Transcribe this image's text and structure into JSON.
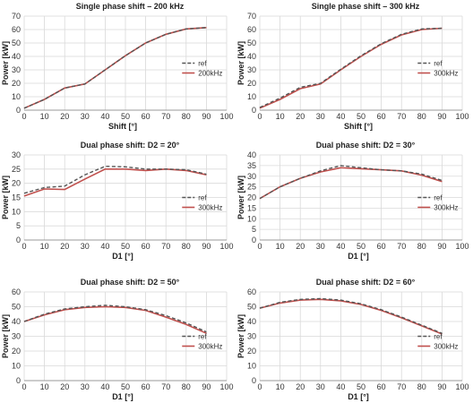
{
  "chart_data": [
    {
      "type": "line",
      "title": "Single phase shift – 200 kHz",
      "xlabel": "Shift [°]",
      "ylabel": "Power [kW]",
      "xlim": [
        0,
        100
      ],
      "ylim": [
        0,
        70
      ],
      "xticks": [
        "0",
        "10",
        "20",
        "30",
        "40",
        "50",
        "60",
        "70",
        "80",
        "90",
        "100"
      ],
      "yticks": [
        "0",
        "10",
        "20",
        "30",
        "40",
        "50",
        "60",
        "70"
      ],
      "grid": true,
      "legend_position": "right",
      "series": [
        {
          "name": "ref",
          "style": "dashed",
          "color": "#555555",
          "x": [
            0,
            10,
            20,
            30,
            40,
            50,
            60,
            70,
            80,
            90
          ],
          "y": [
            1.5,
            8,
            16.5,
            19.5,
            30,
            40.5,
            50,
            56.5,
            60.5,
            61.5
          ]
        },
        {
          "name": "200kHz",
          "style": "solid",
          "color": "#c0504d",
          "x": [
            0,
            10,
            20,
            30,
            40,
            50,
            60,
            70,
            80,
            90
          ],
          "y": [
            1.5,
            8,
            16.5,
            19.5,
            30,
            40.5,
            50,
            56.5,
            60.5,
            61.5
          ]
        }
      ]
    },
    {
      "type": "line",
      "title": "Single phase shift – 300 kHz",
      "xlabel": "Shift [°]",
      "ylabel": "Power [kW]",
      "xlim": [
        0,
        100
      ],
      "ylim": [
        0,
        70
      ],
      "xticks": [
        "0",
        "10",
        "20",
        "30",
        "40",
        "50",
        "60",
        "70",
        "80",
        "90",
        "100"
      ],
      "yticks": [
        "0",
        "10",
        "20",
        "30",
        "40",
        "50",
        "60",
        "70"
      ],
      "grid": true,
      "legend_position": "right",
      "series": [
        {
          "name": "ref",
          "style": "dashed",
          "color": "#555555",
          "x": [
            0,
            10,
            20,
            30,
            40,
            50,
            60,
            70,
            80,
            90
          ],
          "y": [
            2,
            9,
            17,
            20,
            30.5,
            40.5,
            49.5,
            56.5,
            60.5,
            61
          ]
        },
        {
          "name": "300kHz",
          "style": "solid",
          "color": "#c0504d",
          "x": [
            0,
            10,
            20,
            30,
            40,
            50,
            60,
            70,
            80,
            90
          ],
          "y": [
            1.5,
            8,
            16,
            19.5,
            30,
            40,
            49,
            56,
            60,
            61
          ]
        }
      ]
    },
    {
      "type": "line",
      "title": "Dual phase shift: D2 = 20°",
      "xlabel": "D1 [°]",
      "ylabel": "Power [kW]",
      "xlim": [
        0,
        100
      ],
      "ylim": [
        0,
        30
      ],
      "xticks": [
        "0",
        "10",
        "20",
        "30",
        "40",
        "50",
        "60",
        "70",
        "80",
        "90",
        "100"
      ],
      "yticks": [
        "0",
        "5",
        "10",
        "15",
        "20",
        "25",
        "30"
      ],
      "grid": true,
      "legend_position": "right",
      "series": [
        {
          "name": "ref",
          "style": "dashed",
          "color": "#555555",
          "x": [
            0,
            10,
            20,
            30,
            40,
            50,
            60,
            70,
            80,
            90
          ],
          "y": [
            16.5,
            18.5,
            19,
            23,
            26,
            25.8,
            25,
            25,
            24.8,
            23.2
          ]
        },
        {
          "name": "300kHz",
          "style": "solid",
          "color": "#c0504d",
          "x": [
            0,
            10,
            20,
            30,
            40,
            50,
            60,
            70,
            80,
            90
          ],
          "y": [
            15.5,
            18,
            17.8,
            21.5,
            25,
            25,
            24.5,
            25,
            24.5,
            23
          ]
        }
      ]
    },
    {
      "type": "line",
      "title": "Dual phase shift: D2 = 30°",
      "xlabel": "D1 [°]",
      "ylabel": "Power [kW]",
      "xlim": [
        0,
        100
      ],
      "ylim": [
        0,
        40
      ],
      "xticks": [
        "0",
        "10",
        "20",
        "30",
        "40",
        "50",
        "60",
        "70",
        "80",
        "90",
        "100"
      ],
      "yticks": [
        "0",
        "5",
        "10",
        "15",
        "20",
        "25",
        "30",
        "35",
        "40"
      ],
      "grid": true,
      "legend_position": "right",
      "series": [
        {
          "name": "ref",
          "style": "dashed",
          "color": "#555555",
          "x": [
            0,
            10,
            20,
            30,
            40,
            50,
            60,
            70,
            80,
            90
          ],
          "y": [
            19.5,
            25,
            29,
            32.5,
            35,
            34,
            33,
            32.5,
            31,
            28
          ]
        },
        {
          "name": "300kHz",
          "style": "solid",
          "color": "#c0504d",
          "x": [
            0,
            10,
            20,
            30,
            40,
            50,
            60,
            70,
            80,
            90
          ],
          "y": [
            19.5,
            25,
            29,
            32,
            34,
            33.5,
            33,
            32.5,
            30.5,
            27.5
          ]
        }
      ]
    },
    {
      "type": "line",
      "title": "Dual phase shift: D2 = 50°",
      "xlabel": "D1 [°]",
      "ylabel": "Power [kW]",
      "xlim": [
        0,
        100
      ],
      "ylim": [
        0,
        60
      ],
      "xticks": [
        "0",
        "10",
        "20",
        "30",
        "40",
        "50",
        "60",
        "70",
        "80",
        "90",
        "100"
      ],
      "yticks": [
        "0",
        "10",
        "20",
        "30",
        "40",
        "50",
        "60"
      ],
      "grid": true,
      "legend_position": "right",
      "series": [
        {
          "name": "ref",
          "style": "dashed",
          "color": "#555555",
          "x": [
            0,
            10,
            20,
            30,
            40,
            50,
            60,
            70,
            80,
            90
          ],
          "y": [
            40,
            45,
            48.5,
            50,
            51,
            50,
            48,
            44,
            39,
            33
          ]
        },
        {
          "name": "300kHz",
          "style": "solid",
          "color": "#c0504d",
          "x": [
            0,
            10,
            20,
            30,
            40,
            50,
            60,
            70,
            80,
            90
          ],
          "y": [
            40,
            44.5,
            48,
            49.5,
            50,
            49.5,
            47.5,
            43,
            38,
            32
          ]
        }
      ]
    },
    {
      "type": "line",
      "title": "Dual phase shift: D2 = 60°",
      "xlabel": "D1 [°]",
      "ylabel": "Power [kW]",
      "xlim": [
        0,
        100
      ],
      "ylim": [
        0,
        60
      ],
      "xticks": [
        "0",
        "10",
        "20",
        "30",
        "40",
        "50",
        "60",
        "70",
        "80",
        "90",
        "100"
      ],
      "yticks": [
        "0",
        "10",
        "20",
        "30",
        "40",
        "50",
        "60"
      ],
      "grid": true,
      "legend_position": "right",
      "series": [
        {
          "name": "ref",
          "style": "dashed",
          "color": "#555555",
          "x": [
            0,
            10,
            20,
            30,
            40,
            50,
            60,
            70,
            80,
            90
          ],
          "y": [
            49,
            53,
            55,
            55.5,
            54.5,
            52,
            48,
            43,
            37.5,
            32
          ]
        },
        {
          "name": "300kHz",
          "style": "solid",
          "color": "#c0504d",
          "x": [
            0,
            10,
            20,
            30,
            40,
            50,
            60,
            70,
            80,
            90
          ],
          "y": [
            49,
            52.5,
            54.5,
            55,
            54,
            51.5,
            47.5,
            42.5,
            37,
            31.5
          ]
        }
      ]
    }
  ]
}
